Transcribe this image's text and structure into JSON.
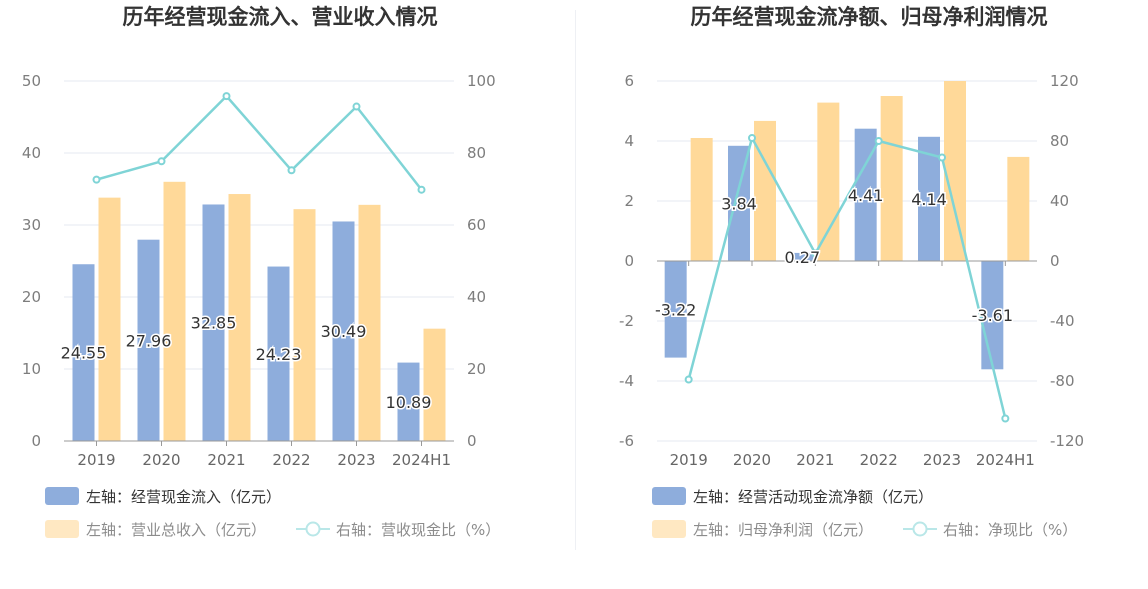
{
  "colors": {
    "bar_blue": "#8eaddc",
    "bar_orange": "#ffd999",
    "line": "#7fd4d6",
    "grid": "#e6e9f2",
    "legend_dark": "#333333",
    "legend_muted": "#8c8c8c"
  },
  "left_chart": {
    "title": "历年经营现金流入、营业收入情况",
    "legend": {
      "series1": "左轴：经营现金流入（亿元）",
      "series2": "左轴：营业总收入（亿元）",
      "series3": "右轴：营收现金比（%）"
    },
    "left_ticks": [
      "0",
      "10",
      "20",
      "30",
      "40",
      "50"
    ],
    "right_ticks": [
      "0",
      "20",
      "40",
      "60",
      "80",
      "100"
    ]
  },
  "right_chart": {
    "title": "历年经营现金流净额、归母净利润情况",
    "legend": {
      "series1": "左轴：经营活动现金流净额（亿元）",
      "series2": "左轴：归母净利润（亿元）",
      "series3": "右轴：净现比（%）"
    },
    "left_ticks": [
      "-6",
      "-4",
      "-2",
      "0",
      "2",
      "4",
      "6"
    ],
    "right_ticks": [
      "-120",
      "-80",
      "-40",
      "0",
      "40",
      "80",
      "120"
    ]
  },
  "chart_data": [
    {
      "type": "bar",
      "title": "历年经营现金流入、营业收入情况",
      "categories": [
        "2019",
        "2020",
        "2021",
        "2022",
        "2023",
        "2024H1"
      ],
      "ylim_left": [
        0,
        50
      ],
      "ylim_right": [
        0,
        100
      ],
      "grid": true,
      "legend_position": "bottom-left",
      "series": [
        {
          "name": "左轴：经营现金流入（亿元）",
          "axis": "left",
          "kind": "bar",
          "values": [
            24.55,
            27.96,
            32.85,
            24.23,
            30.49,
            10.89
          ],
          "labels": [
            "24.55",
            "27.96",
            "32.85",
            "24.23",
            "30.49",
            "10.89"
          ]
        },
        {
          "name": "左轴：营业总收入（亿元）",
          "axis": "left",
          "kind": "bar",
          "values": [
            33.8,
            36.0,
            34.3,
            32.2,
            32.8,
            15.6
          ]
        },
        {
          "name": "右轴：营收现金比（%）",
          "axis": "right",
          "kind": "line",
          "values": [
            72.6,
            77.7,
            95.8,
            75.2,
            92.9,
            69.8
          ]
        }
      ]
    },
    {
      "type": "bar",
      "title": "历年经营现金流净额、归母净利润情况",
      "categories": [
        "2019",
        "2020",
        "2021",
        "2022",
        "2023",
        "2024H1"
      ],
      "ylim_left": [
        -6,
        6
      ],
      "ylim_right": [
        -120,
        120
      ],
      "grid": true,
      "legend_position": "bottom-left",
      "series": [
        {
          "name": "左轴：经营活动现金流净额（亿元）",
          "axis": "left",
          "kind": "bar",
          "values": [
            -3.22,
            3.84,
            0.27,
            4.41,
            4.14,
            -3.61
          ],
          "labels": [
            "-3.22",
            "3.84",
            "0.27",
            "4.41",
            "4.14",
            "-3.61"
          ]
        },
        {
          "name": "左轴：归母净利润（亿元）",
          "axis": "left",
          "kind": "bar",
          "values": [
            4.1,
            4.67,
            5.28,
            5.5,
            6.0,
            3.47
          ]
        },
        {
          "name": "右轴：净现比（%）",
          "axis": "right",
          "kind": "line",
          "values": [
            -79,
            82,
            5,
            80,
            69,
            -105
          ]
        }
      ]
    }
  ]
}
